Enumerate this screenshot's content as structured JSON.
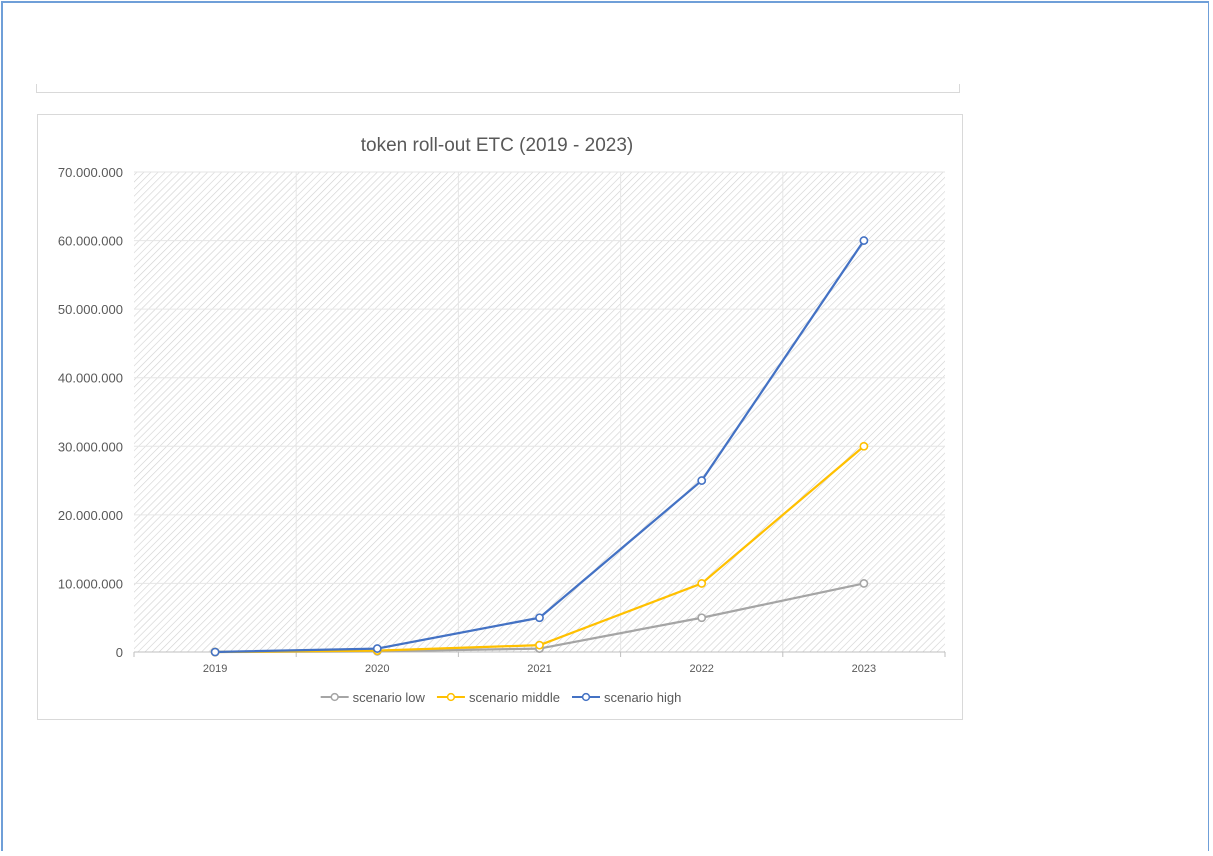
{
  "chart_data": {
    "type": "line",
    "title": "token roll-out ETC (2019 - 2023)",
    "xlabel": "",
    "ylabel": "",
    "categories": [
      "2019",
      "2020",
      "2021",
      "2022",
      "2023"
    ],
    "ylim": [
      0,
      70000000
    ],
    "y_ticks": [
      0,
      10000000,
      20000000,
      30000000,
      40000000,
      50000000,
      60000000,
      70000000
    ],
    "y_tick_labels": [
      "0",
      "10.000.000",
      "20.000.000",
      "30.000.000",
      "40.000.000",
      "50.000.000",
      "60.000.000",
      "70.000.000"
    ],
    "grid": true,
    "legend_position": "bottom",
    "series": [
      {
        "name": "scenario low",
        "color": "#a5a5a5",
        "values": [
          0,
          100000,
          500000,
          5000000,
          10000000
        ]
      },
      {
        "name": "scenario middle",
        "color": "#ffc000",
        "values": [
          0,
          200000,
          1000000,
          10000000,
          30000000
        ]
      },
      {
        "name": "scenario high",
        "color": "#4472c4",
        "values": [
          0,
          500000,
          5000000,
          25000000,
          60000000
        ]
      }
    ]
  }
}
